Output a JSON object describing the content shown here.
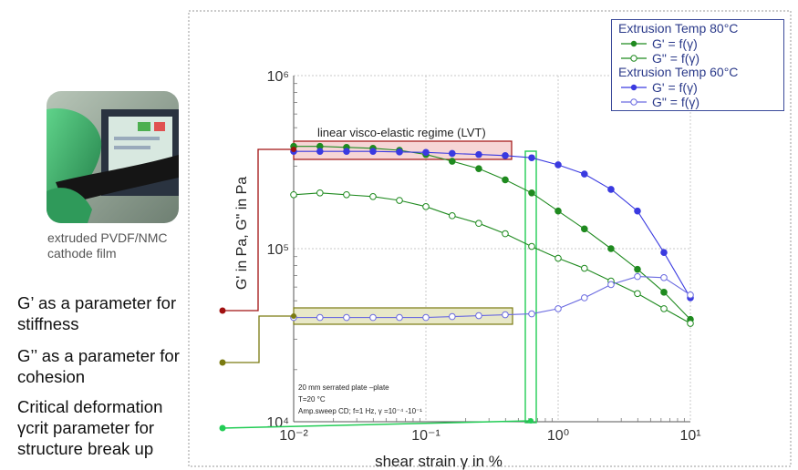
{
  "chart_data": {
    "type": "line",
    "xscale": "log",
    "yscale": "log",
    "xlim": [
      0.01,
      10
    ],
    "ylim": [
      10000,
      1000000
    ],
    "xlabel": "shear strain γ in %",
    "ylabel": "G' in Pa, G\" in Pa",
    "x_tick_labels": [
      "10⁻²",
      "10⁻¹",
      "10⁰",
      "10¹"
    ],
    "y_tick_labels": [
      "10⁴",
      "10⁵",
      "10⁶"
    ],
    "grid": true,
    "legend_position": "top-right",
    "legend_groups": [
      {
        "title": "Extrusion Temp 80°C",
        "entries": [
          "G' = f(γ)",
          "G\" = f(γ)"
        ]
      },
      {
        "title": "Extrusion Temp 60°C",
        "entries": [
          "G' = f(γ)",
          "G\" = f(γ)"
        ]
      }
    ],
    "series": [
      {
        "name": "G' = f(γ)",
        "group": "Extrusion Temp 80°C",
        "color": "#1f8a1f",
        "filled": true,
        "x": [
          0.01,
          0.0158,
          0.0251,
          0.0398,
          0.0631,
          0.1,
          0.158,
          0.251,
          0.398,
          0.631,
          1,
          1.58,
          2.51,
          3.98,
          6.31,
          10
        ],
        "y": [
          390000,
          390000,
          385000,
          380000,
          370000,
          350000,
          320000,
          290000,
          250000,
          210000,
          165000,
          130000,
          100000,
          76000,
          56000,
          39000
        ]
      },
      {
        "name": "G\" = f(γ)",
        "group": "Extrusion Temp 80°C",
        "color": "#1f8a1f",
        "filled": false,
        "x": [
          0.01,
          0.0158,
          0.0251,
          0.0398,
          0.0631,
          0.1,
          0.158,
          0.251,
          0.398,
          0.631,
          1,
          1.58,
          2.51,
          3.98,
          6.31,
          10
        ],
        "y": [
          205000,
          210000,
          205000,
          200000,
          190000,
          175000,
          155000,
          140000,
          122000,
          103000,
          88000,
          77000,
          65000,
          55000,
          45000,
          37000
        ]
      },
      {
        "name": "G' = f(γ)",
        "group": "Extrusion Temp 60°C",
        "color": "#3a3ae0",
        "filled": true,
        "x": [
          0.01,
          0.0158,
          0.0251,
          0.0398,
          0.0631,
          0.1,
          0.158,
          0.251,
          0.398,
          0.631,
          1,
          1.58,
          2.51,
          3.98,
          6.31,
          10
        ],
        "y": [
          365000,
          365000,
          365000,
          365000,
          362000,
          360000,
          355000,
          350000,
          345000,
          335000,
          305000,
          270000,
          220000,
          165000,
          95000,
          52000
        ]
      },
      {
        "name": "G\" = f(γ)",
        "group": "Extrusion Temp 60°C",
        "color": "#6a6ae0",
        "filled": false,
        "x": [
          0.01,
          0.0158,
          0.0251,
          0.0398,
          0.0631,
          0.1,
          0.158,
          0.251,
          0.398,
          0.631,
          1,
          1.58,
          2.51,
          3.98,
          6.31,
          10
        ],
        "y": [
          40000,
          40000,
          40000,
          40000,
          40000,
          40000,
          40500,
          41000,
          41500,
          42000,
          45000,
          52000,
          62000,
          69000,
          68000,
          54000
        ]
      }
    ],
    "annotations": {
      "lvt_label": "linear visco-elastic regime (LVT)",
      "conditions": [
        "20 mm serrated plate –plate",
        "T=20 °C",
        "Amp.sweep CD; f=1 Hz, γ =10⁻⁴ -10⁻¹"
      ]
    }
  },
  "photo": {
    "caption_lines": [
      "extruded PVDF/NMC",
      "cathode film"
    ]
  },
  "bullets": [
    {
      "lines": [
        "G’ as a parameter for",
        "stiffness"
      ]
    },
    {
      "lines": [
        "G’’ as a parameter for",
        "cohesion"
      ]
    },
    {
      "lines": [
        "Critical deformation",
        "γcrit  parameter for",
        "structure break up"
      ]
    }
  ],
  "colors": {
    "green": "#1f8a1f",
    "blue": "#3a3ae0",
    "dark_red": "#a01010",
    "olive": "#7a7a10",
    "bright_green": "#22cc55"
  }
}
